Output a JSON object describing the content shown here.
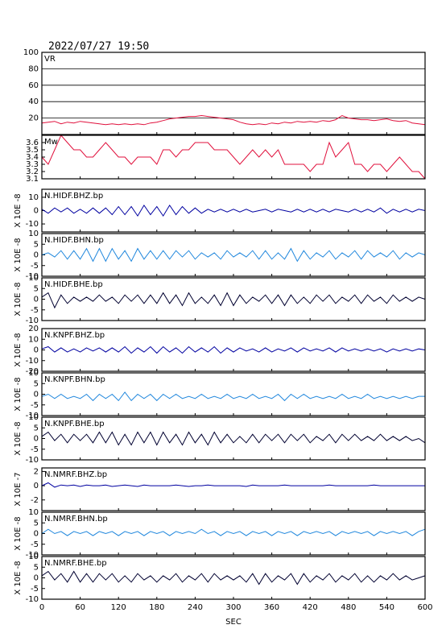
{
  "chart_data": {
    "type": "line",
    "title": "2022/07/27 19:50",
    "xlabel": "SEC",
    "xlim": [
      0,
      600
    ],
    "xticks": [
      0,
      60,
      120,
      180,
      240,
      300,
      360,
      420,
      480,
      540,
      600
    ],
    "x": [
      0,
      10,
      20,
      30,
      40,
      50,
      60,
      70,
      80,
      90,
      100,
      110,
      120,
      130,
      140,
      150,
      160,
      170,
      180,
      190,
      200,
      210,
      220,
      230,
      240,
      250,
      260,
      270,
      280,
      290,
      300,
      310,
      320,
      330,
      340,
      350,
      360,
      370,
      380,
      390,
      400,
      410,
      420,
      430,
      440,
      450,
      460,
      470,
      480,
      490,
      500,
      510,
      520,
      530,
      540,
      550,
      560,
      570,
      580,
      590,
      600
    ],
    "panels": [
      {
        "ylim": [
          0,
          100
        ],
        "yticks": [
          20,
          40,
          60,
          80,
          100
        ],
        "grid": true,
        "series": [
          {
            "name": "VR",
            "color": "#e0103c",
            "values": [
              14,
              15,
              16,
              13,
              15,
              14,
              16,
              15,
              14,
              13,
              12,
              13,
              12,
              13,
              12,
              13,
              12,
              14,
              15,
              17,
              19,
              20,
              21,
              22,
              22,
              23,
              22,
              21,
              20,
              19,
              18,
              15,
              13,
              12,
              13,
              12,
              14,
              13,
              15,
              14,
              16,
              15,
              16,
              15,
              17,
              16,
              18,
              23,
              20,
              19,
              18,
              18,
              17,
              18,
              19,
              17,
              16,
              17,
              14,
              13,
              12
            ]
          }
        ]
      },
      {
        "ylim": [
          3.1,
          3.7
        ],
        "yticks": [
          3.1,
          3.2,
          3.3,
          3.4,
          3.5,
          3.6
        ],
        "grid": false,
        "series": [
          {
            "name": "Mw",
            "color": "#e0103c",
            "values": [
              3.4,
              3.3,
              3.5,
              3.7,
              3.6,
              3.5,
              3.5,
              3.4,
              3.4,
              3.5,
              3.6,
              3.5,
              3.4,
              3.4,
              3.3,
              3.4,
              3.4,
              3.4,
              3.3,
              3.5,
              3.5,
              3.4,
              3.5,
              3.5,
              3.6,
              3.6,
              3.6,
              3.5,
              3.5,
              3.5,
              3.4,
              3.3,
              3.4,
              3.5,
              3.4,
              3.5,
              3.4,
              3.5,
              3.3,
              3.3,
              3.3,
              3.3,
              3.2,
              3.3,
              3.3,
              3.6,
              3.4,
              3.5,
              3.6,
              3.3,
              3.3,
              3.2,
              3.3,
              3.3,
              3.2,
              3.3,
              3.4,
              3.3,
              3.2,
              3.2,
              3.1
            ]
          }
        ]
      },
      {
        "ylim": [
          -16,
          16
        ],
        "yticks": [
          -10,
          0,
          10
        ],
        "ylabel": "X 10E -8",
        "grid": false,
        "series": [
          {
            "name": "N.HIDF.BHZ.bp",
            "color": "#0000a0",
            "values": [
              1,
              -2,
              2,
              -1,
              2,
              -2,
              1,
              -2,
              2,
              -2,
              2,
              -3,
              3,
              -3,
              3,
              -4,
              4,
              -3,
              3,
              -4,
              4,
              -3,
              3,
              -2,
              2,
              -2,
              1,
              -1,
              1,
              -1,
              1,
              -1,
              1,
              -1,
              0,
              1,
              -1,
              1,
              0,
              -1,
              1,
              -1,
              1,
              -1,
              1,
              -1,
              1,
              0,
              -1,
              1,
              -1,
              1,
              -1,
              2,
              -2,
              1,
              -1,
              1,
              -1,
              1,
              0
            ]
          }
        ]
      },
      {
        "ylim": [
          -10,
          10
        ],
        "yticks": [
          -10,
          -5,
          0,
          5,
          10
        ],
        "ylabel": "X 10E -8",
        "grid": false,
        "series": [
          {
            "name": "N.HIDF.BHN.bp",
            "color": "#2288dd",
            "values": [
              0,
              1,
              -1,
              2,
              -2,
              2,
              -2,
              3,
              -3,
              3,
              -3,
              3,
              -2,
              2,
              -3,
              3,
              -2,
              2,
              -2,
              2,
              -2,
              2,
              -1,
              2,
              -2,
              1,
              -1,
              1,
              -2,
              2,
              -1,
              1,
              -1,
              2,
              -2,
              2,
              -2,
              1,
              -2,
              3,
              -3,
              2,
              -2,
              1,
              -1,
              2,
              -2,
              1,
              -1,
              2,
              -2,
              2,
              -1,
              1,
              -1,
              2,
              -2,
              1,
              -1,
              1,
              0
            ]
          }
        ]
      },
      {
        "ylim": [
          -10,
          10
        ],
        "yticks": [
          -10,
          -5,
          0,
          5,
          10
        ],
        "ylabel": "X 10E -8",
        "grid": false,
        "series": [
          {
            "name": "N.HIDF.BHE.bp",
            "color": "#000030",
            "values": [
              1,
              3,
              -4,
              2,
              -2,
              1,
              -1,
              1,
              -1,
              2,
              -1,
              1,
              -2,
              2,
              -1,
              2,
              -2,
              2,
              -2,
              3,
              -2,
              2,
              -3,
              3,
              -2,
              1,
              -2,
              2,
              -3,
              3,
              -3,
              2,
              -2,
              1,
              -1,
              2,
              -2,
              2,
              -3,
              2,
              -2,
              1,
              -2,
              2,
              -1,
              2,
              -2,
              1,
              -1,
              2,
              -2,
              2,
              -1,
              1,
              -2,
              2,
              -1,
              1,
              -1,
              1,
              0
            ]
          }
        ]
      },
      {
        "ylim": [
          -20,
          20
        ],
        "yticks": [
          -20,
          -10,
          0,
          10,
          20
        ],
        "ylabel": "X 10E -8",
        "grid": false,
        "series": [
          {
            "name": "N.KNPF.BHZ.bp",
            "color": "#0000a0",
            "values": [
              1,
              3,
              -2,
              2,
              -2,
              1,
              -2,
              2,
              -1,
              2,
              -2,
              2,
              -2,
              3,
              -3,
              2,
              -2,
              3,
              -3,
              3,
              -2,
              2,
              -3,
              3,
              -2,
              2,
              -2,
              3,
              -3,
              2,
              -2,
              2,
              -1,
              1,
              -2,
              2,
              -2,
              1,
              -1,
              2,
              -2,
              2,
              -1,
              1,
              -1,
              2,
              -2,
              2,
              -1,
              1,
              -1,
              1,
              -1,
              1,
              -2,
              1,
              -1,
              1,
              -1,
              1,
              0
            ]
          }
        ]
      },
      {
        "ylim": [
          -10,
          10
        ],
        "yticks": [
          -10,
          -5,
          0,
          5,
          10
        ],
        "ylabel": "X 10E -8",
        "grid": false,
        "series": [
          {
            "name": "N.KNPF.BHN.bp",
            "color": "#2288dd",
            "values": [
              -1,
              0,
              -2,
              0,
              -2,
              -1,
              -2,
              0,
              -3,
              0,
              -2,
              0,
              -3,
              1,
              -3,
              0,
              -2,
              0,
              -3,
              0,
              -2,
              0,
              -2,
              -1,
              -2,
              0,
              -2,
              -1,
              -2,
              0,
              -2,
              -1,
              -2,
              0,
              -2,
              -1,
              -2,
              0,
              -3,
              0,
              -2,
              0,
              -2,
              -1,
              -2,
              -1,
              -2,
              0,
              -2,
              -1,
              -2,
              0,
              -2,
              -1,
              -2,
              -1,
              -2,
              -1,
              -2,
              -1,
              -1
            ]
          }
        ]
      },
      {
        "ylim": [
          -10,
          10
        ],
        "yticks": [
          -10,
          -5,
          0,
          5,
          10
        ],
        "ylabel": "X 10E -8",
        "grid": false,
        "series": [
          {
            "name": "N.KNPF.BHE.bp",
            "color": "#000030",
            "values": [
              1,
              3,
              -1,
              2,
              -2,
              2,
              -1,
              2,
              -2,
              3,
              -2,
              3,
              -3,
              2,
              -3,
              3,
              -2,
              3,
              -3,
              3,
              -2,
              2,
              -3,
              3,
              -2,
              2,
              -3,
              3,
              -2,
              2,
              -2,
              1,
              -2,
              2,
              -2,
              2,
              -1,
              2,
              -2,
              2,
              -1,
              2,
              -2,
              1,
              -1,
              2,
              -2,
              2,
              -1,
              2,
              -1,
              1,
              -1,
              2,
              -1,
              1,
              -1,
              1,
              -1,
              0,
              -2
            ]
          }
        ]
      },
      {
        "ylim": [
          -3.5,
          2.5
        ],
        "yticks": [
          -2,
          0,
          2
        ],
        "ylabel": "X 10E -7",
        "grid": false,
        "series": [
          {
            "name": "N.NMRF.BHZ.bp",
            "color": "#0000a0",
            "values": [
              0,
              0.4,
              -0.2,
              0.1,
              0,
              0.1,
              -0.1,
              0.1,
              0,
              0,
              0.1,
              -0.1,
              0,
              0.1,
              0,
              -0.1,
              0.1,
              0,
              0,
              0,
              0,
              0.1,
              0,
              -0.1,
              0,
              0,
              0.1,
              0,
              0,
              0,
              0,
              0,
              -0.1,
              0.1,
              0,
              0,
              0,
              0,
              0.1,
              0,
              0,
              0,
              0,
              0,
              0,
              0.1,
              0,
              0,
              0,
              0,
              0,
              0,
              0.1,
              0,
              0,
              0,
              0,
              0,
              0,
              0,
              0
            ]
          }
        ]
      },
      {
        "ylim": [
          -10,
          10
        ],
        "yticks": [
          -10,
          -5,
          0,
          5,
          10
        ],
        "ylabel": "X 10E -8",
        "grid": false,
        "series": [
          {
            "name": "N.NMRF.BHN.bp",
            "color": "#2288dd",
            "values": [
              0,
              2,
              0,
              1,
              -1,
              1,
              0,
              1,
              -1,
              1,
              0,
              1,
              -1,
              1,
              0,
              1,
              -1,
              1,
              0,
              1,
              -1,
              1,
              0,
              1,
              0,
              2,
              0,
              1,
              -1,
              1,
              0,
              1,
              -1,
              1,
              0,
              1,
              -1,
              1,
              0,
              1,
              -1,
              1,
              0,
              1,
              0,
              1,
              -1,
              1,
              0,
              1,
              0,
              1,
              -1,
              1,
              0,
              1,
              0,
              1,
              -1,
              1,
              2
            ]
          }
        ]
      },
      {
        "ylim": [
          -10,
          10
        ],
        "yticks": [
          -10,
          -5,
          0,
          5,
          10
        ],
        "ylabel": "X 10E -8",
        "grid": false,
        "series": [
          {
            "name": "N.NMRF.BHE.bp",
            "color": "#000030",
            "values": [
              1,
              3,
              -1,
              2,
              -2,
              3,
              -2,
              2,
              -2,
              2,
              -1,
              2,
              -2,
              1,
              -2,
              2,
              -1,
              1,
              -2,
              1,
              -1,
              2,
              -2,
              1,
              -1,
              2,
              -2,
              2,
              -1,
              1,
              -1,
              1,
              -2,
              2,
              -3,
              2,
              -2,
              1,
              -1,
              2,
              -3,
              2,
              -2,
              1,
              -1,
              2,
              -2,
              1,
              -1,
              2,
              -2,
              1,
              -2,
              1,
              -1,
              2,
              -1,
              1,
              -1,
              0,
              1
            ]
          }
        ]
      }
    ]
  }
}
